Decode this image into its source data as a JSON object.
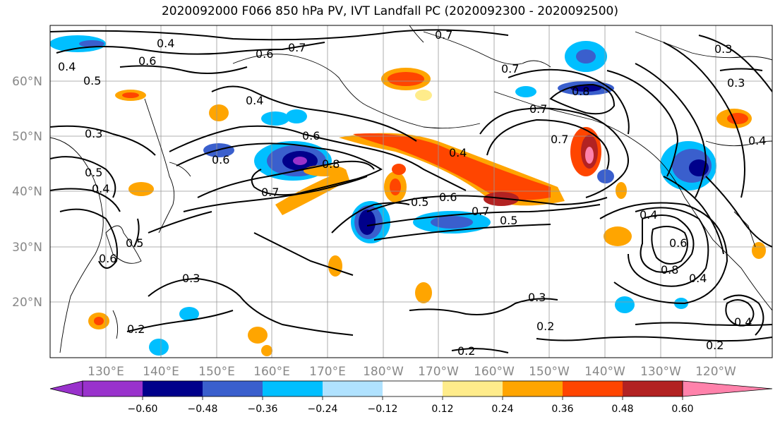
{
  "title": "2020092000 F066 850 hPa PV, IVT Landfall PC (2020092300 - 2020092500)",
  "latitude_labels": [
    "60°N",
    "50°N",
    "40°N",
    "30°N",
    "20°N"
  ],
  "longitude_labels": [
    "130°E",
    "140°E",
    "150°E",
    "160°E",
    "170°E",
    "180°W",
    "170°W",
    "160°W",
    "150°W",
    "140°W",
    "130°W",
    "120°W"
  ],
  "contour_labels": [
    "0.4",
    "0.6",
    "0.7",
    "0.7",
    "0.3",
    "0.6",
    "0.4",
    "0.5",
    "0.3",
    "0.5",
    "0.4",
    "0.6",
    "0.7",
    "0.8",
    "0.6",
    "0.5",
    "0.6",
    "0.7",
    "0.5",
    "0.4",
    "0.7",
    "0.8",
    "0.7",
    "0.7",
    "0.3",
    "0.4",
    "0.6",
    "0.8",
    "0.4",
    "0.3",
    "0.2",
    "0.2",
    "0.3",
    "0.2",
    "0.2",
    "0.4",
    "0.6",
    "0.5",
    "0.4",
    "0.4"
  ],
  "colorbar": {
    "ticks": [
      "−0.60",
      "−0.48",
      "−0.36",
      "−0.24",
      "−0.12",
      "0.12",
      "0.24",
      "0.36",
      "0.48",
      "0.60"
    ],
    "colors": [
      "#9932CC",
      "#00008B",
      "#3A5FCD",
      "#00BFFF",
      "#B0E2FF",
      "#FFFFFF",
      "#FFEC8B",
      "#FFA500",
      "#FF4500",
      "#B22222",
      "#FF82AB"
    ]
  }
}
